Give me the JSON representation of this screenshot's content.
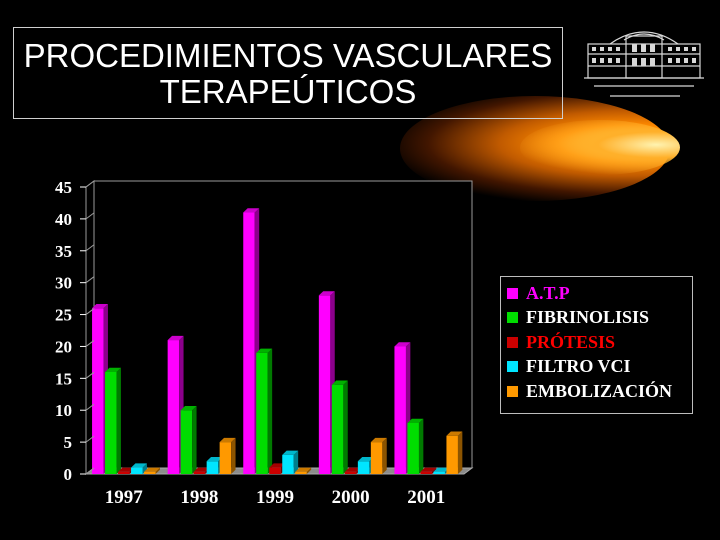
{
  "slide": {
    "title_line1": "PROCEDIMIENTOS VASCULARES",
    "title_line2": "TERAPEÚTICOS"
  },
  "chart_data": {
    "type": "bar",
    "categories": [
      "1997",
      "1998",
      "1999",
      "2000",
      "2001"
    ],
    "series": [
      {
        "name": "A.T.P",
        "color": "#ff00ff",
        "values": [
          26,
          21,
          41,
          28,
          20
        ]
      },
      {
        "name": "FIBRINOLISIS",
        "color": "#00dd00",
        "values": [
          16,
          10,
          19,
          14,
          8
        ]
      },
      {
        "name": "PRÓTESIS",
        "color": "#cc0000",
        "values": [
          0,
          0,
          1,
          0,
          0
        ]
      },
      {
        "name": "FILTRO VCI",
        "color": "#00e5ff",
        "values": [
          1,
          2,
          3,
          2,
          0
        ]
      },
      {
        "name": "EMBOLIZACIÓN",
        "color": "#ff9900",
        "values": [
          0,
          5,
          0,
          5,
          6
        ]
      }
    ],
    "yticks": [
      0,
      5,
      10,
      15,
      20,
      25,
      30,
      35,
      40,
      45
    ],
    "ylim": [
      0,
      45
    ],
    "grid": false,
    "legend": "right",
    "style": "3d-bar"
  },
  "legend_text_colors": [
    "#ff00ff",
    "#ffffff",
    "#ff0000",
    "#ffffff",
    "#ffffff"
  ]
}
